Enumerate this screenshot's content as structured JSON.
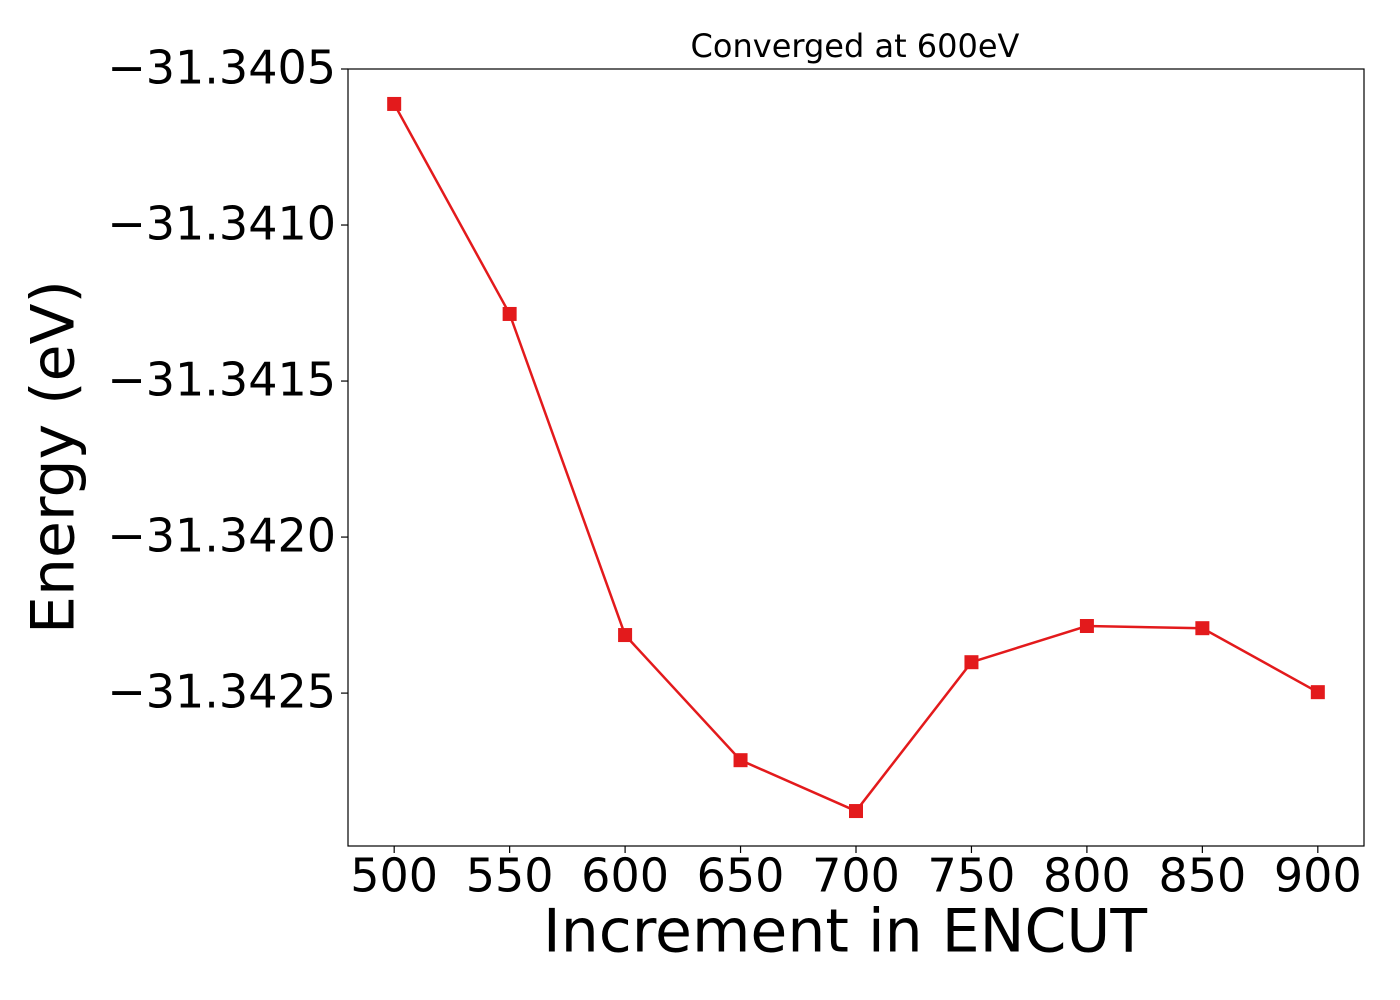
{
  "chart_data": {
    "type": "line",
    "title": "Converged at 600eV",
    "xlabel": "Increment in ENCUT",
    "ylabel": "Energy (eV)",
    "x": [
      500,
      550,
      600,
      650,
      700,
      750,
      800,
      850,
      900
    ],
    "series": [
      {
        "color": "#e31a1c",
        "marker": "square",
        "values": [
          -31.340612,
          -31.341285,
          -31.342314,
          -31.342715,
          -31.342878,
          -31.342401,
          -31.342285,
          -31.342292,
          -31.342497
        ]
      }
    ],
    "xlim": [
      480,
      920
    ],
    "ylim": [
      -31.34299,
      -31.3405
    ],
    "xticks": [
      500,
      550,
      600,
      650,
      700,
      750,
      800,
      850,
      900
    ],
    "yticks": [
      {
        "value": -31.3405,
        "label": "−31.3405"
      },
      {
        "value": -31.341,
        "label": "−31.3410"
      },
      {
        "value": -31.3415,
        "label": "−31.3415"
      },
      {
        "value": -31.342,
        "label": "−31.3420"
      },
      {
        "value": -31.3425,
        "label": "−31.3425"
      }
    ],
    "grid": false
  }
}
